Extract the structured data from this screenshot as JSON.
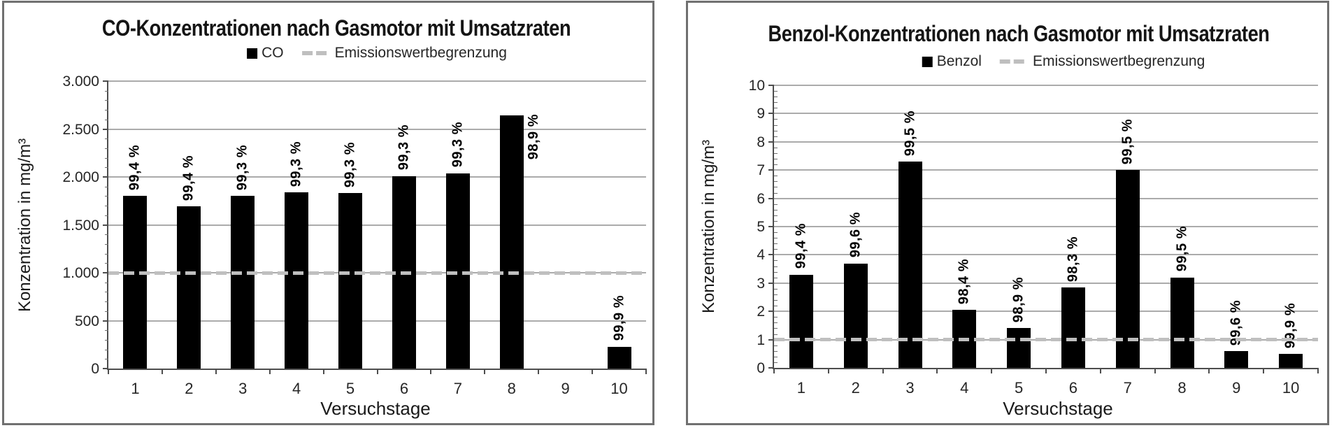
{
  "chart_data": [
    {
      "type": "bar",
      "title": "CO-Konzentrationen nach Gasmotor mit Umsatzraten",
      "series": [
        {
          "name": "CO",
          "values": [
            1800,
            1690,
            1800,
            1840,
            1830,
            2010,
            2040,
            2640,
            0,
            230
          ]
        }
      ],
      "bar_labels": [
        "99,4 %",
        "99,4 %",
        "99,3 %",
        "99,3 %",
        "99,3 %",
        "99,3 %",
        "99,3 %",
        "98,9 %",
        "",
        "99,9 %"
      ],
      "limit": {
        "label": "Emissionswertbegrenzung",
        "value": 1000
      },
      "categories": [
        "1",
        "2",
        "3",
        "4",
        "5",
        "6",
        "7",
        "8",
        "9",
        "10"
      ],
      "xlabel": "Versuchstage",
      "ylabel": "Konzentration in mg/m³",
      "ylim": [
        0,
        3000
      ],
      "ytick_step": 500,
      "ytick_labels": [
        "0",
        "500",
        "1.000",
        "1.500",
        "2.000",
        "2.500",
        "3.000"
      ],
      "minor_tick_step": 100,
      "grid": true,
      "legend_position": "top",
      "bar_color": "#000000",
      "limit_color": "#bfbfbf"
    },
    {
      "type": "bar",
      "title": "Benzol-Konzentrationen nach Gasmotor mit Umsatzraten",
      "series": [
        {
          "name": "Benzol",
          "values": [
            3.3,
            3.7,
            7.3,
            2.05,
            1.4,
            2.85,
            7.0,
            3.2,
            0.6,
            0.5
          ]
        }
      ],
      "bar_labels": [
        "99,4 %",
        "99,6 %",
        "99,5 %",
        "98,4 %",
        "98,9 %",
        "98,3 %",
        "99,5 %",
        "99,5 %",
        "99,6 %",
        "99,9 %"
      ],
      "limit": {
        "label": "Emissionswertbegrenzung",
        "value": 1
      },
      "categories": [
        "1",
        "2",
        "3",
        "4",
        "5",
        "6",
        "7",
        "8",
        "9",
        "10"
      ],
      "xlabel": "Versuchstage",
      "ylabel": "Konzentration in mg/m³",
      "ylim": [
        0,
        10
      ],
      "ytick_step": 1,
      "ytick_labels": [
        "0",
        "1",
        "2",
        "3",
        "4",
        "5",
        "6",
        "7",
        "8",
        "9",
        "10"
      ],
      "minor_tick_step": 0.2,
      "grid": true,
      "legend_position": "top",
      "bar_color": "#000000",
      "limit_color": "#bfbfbf"
    }
  ]
}
